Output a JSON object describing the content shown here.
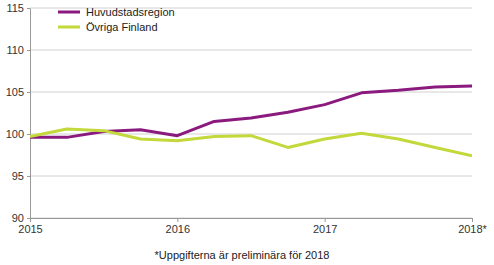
{
  "chart_data": {
    "type": "line",
    "categories": [
      "2015",
      null,
      null,
      null,
      "2016",
      null,
      null,
      null,
      "2017",
      null,
      null,
      null,
      "2018*"
    ],
    "series": [
      {
        "name": "Huvudstadsregion",
        "color": "#8b1a7e",
        "values": [
          99.6,
          99.6,
          100.3,
          100.5,
          99.8,
          101.5,
          101.9,
          102.6,
          103.5,
          104.9,
          105.2,
          105.6,
          105.7
        ]
      },
      {
        "name": "Övriga Finland",
        "color": "#c3d83a",
        "values": [
          99.7,
          100.6,
          100.4,
          99.4,
          99.2,
          99.7,
          99.8,
          98.4,
          99.4,
          100.1,
          99.4,
          98.4,
          97.4
        ]
      }
    ],
    "ylim": [
      90,
      115
    ],
    "yticks": [
      90,
      95,
      100,
      105,
      110,
      115
    ],
    "grid": true,
    "legend": "upper left",
    "annotations": [
      "*Uppgifterna är preliminära för 2018"
    ]
  }
}
